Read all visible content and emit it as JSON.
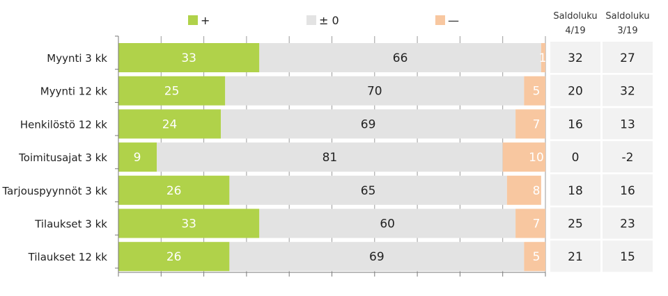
{
  "chart_data": {
    "type": "bar",
    "orientation": "horizontal",
    "stacked": true,
    "percent_scale": true,
    "xlim": [
      0,
      100
    ],
    "grid": true,
    "legend_placement": "top",
    "categories": [
      "Myynti 3 kk",
      "Myynti 12 kk",
      "Henkilöstö 12 kk",
      "Toimitusajat 3 kk",
      "Tarjouspyynnöt 3 kk",
      "Tilaukset 3 kk",
      "Tilaukset 12 kk"
    ],
    "series": [
      {
        "name": "+",
        "color": "#b0d24a",
        "label_color": "#ffffff",
        "values": [
          33,
          25,
          24,
          9,
          26,
          33,
          26
        ]
      },
      {
        "name": "± 0",
        "color": "#e3e3e3",
        "label_color": "#222222",
        "values": [
          66,
          70,
          69,
          81,
          65,
          60,
          69
        ]
      },
      {
        "name": "—",
        "color": "#f8c7a0",
        "label_color": "#ffffff",
        "values": [
          1,
          5,
          7,
          10,
          8,
          7,
          5
        ]
      }
    ],
    "side_table": {
      "headers": [
        [
          "Saldoluku",
          "4/19"
        ],
        [
          "Saldoluku",
          "3/19"
        ]
      ],
      "rows": [
        [
          "32",
          "27"
        ],
        [
          "20",
          "32"
        ],
        [
          "16",
          "13"
        ],
        [
          "0",
          "-2"
        ],
        [
          "18",
          "16"
        ],
        [
          "25",
          "23"
        ],
        [
          "21",
          "15"
        ]
      ],
      "cell_color": "#f2f2f2"
    }
  }
}
